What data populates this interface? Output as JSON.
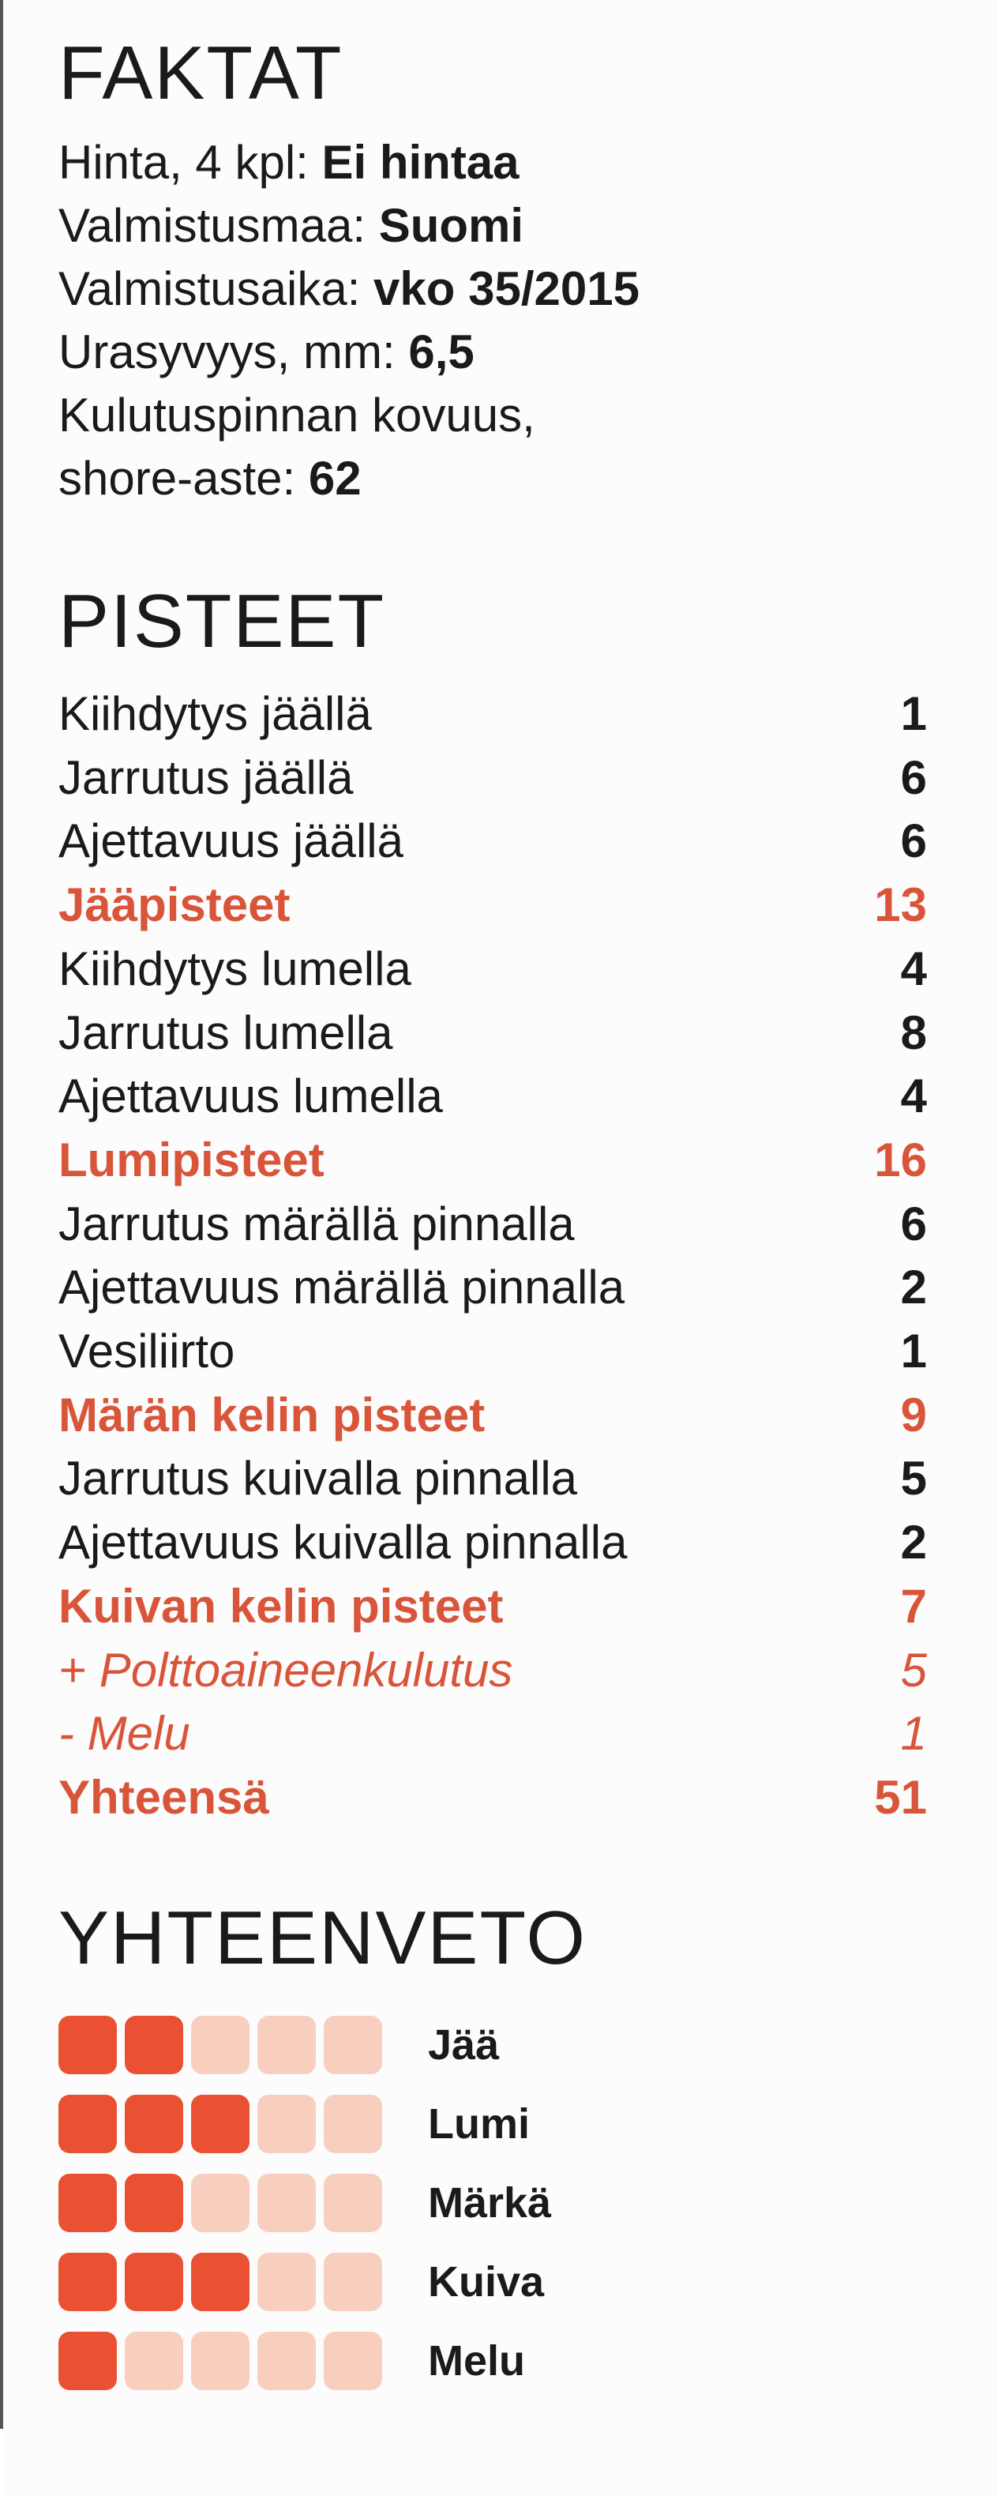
{
  "facts": {
    "heading": "FAKTAT",
    "lines": [
      {
        "label": "Hinta, 4 kpl:",
        "value": "Ei hintaa"
      },
      {
        "label": "Valmistusmaa:",
        "value": "Suomi"
      },
      {
        "label": "Valmistusaika:",
        "value": "vko 35/2015"
      },
      {
        "label": "Urasyvyys, mm:",
        "value": "6,5"
      },
      {
        "label": "Kulutuspinnan kovuus,",
        "value": ""
      },
      {
        "label": "shore-aste:",
        "value": "62"
      }
    ]
  },
  "scores": {
    "heading": "PISTEET",
    "rows": [
      {
        "label": "Kiihdytys jäällä",
        "value": "1",
        "kind": "item"
      },
      {
        "label": "Jarrutus jäällä",
        "value": "6",
        "kind": "item"
      },
      {
        "label": "Ajettavuus jäällä",
        "value": "6",
        "kind": "item"
      },
      {
        "label": "Jääpisteet",
        "value": "13",
        "kind": "subtotal"
      },
      {
        "label": "Kiihdytys lumella",
        "value": "4",
        "kind": "item"
      },
      {
        "label": "Jarrutus lumella",
        "value": "8",
        "kind": "item"
      },
      {
        "label": "Ajettavuus lumella",
        "value": "4",
        "kind": "item"
      },
      {
        "label": "Lumipisteet",
        "value": "16",
        "kind": "subtotal"
      },
      {
        "label": "Jarrutus märällä pinnalla",
        "value": "6",
        "kind": "item"
      },
      {
        "label": "Ajettavuus märällä pinnalla",
        "value": "2",
        "kind": "item"
      },
      {
        "label": "Vesiliirto",
        "value": "1",
        "kind": "item"
      },
      {
        "label": "Märän kelin pisteet",
        "value": "9",
        "kind": "subtotal"
      },
      {
        "label": "Jarrutus kuivalla pinnalla",
        "value": "5",
        "kind": "item"
      },
      {
        "label": "Ajettavuus kuivalla pinnalla",
        "value": "2",
        "kind": "item"
      },
      {
        "label": "Kuivan kelin pisteet",
        "value": "7",
        "kind": "subtotal"
      },
      {
        "label": "+ Polttoaineenkulutus",
        "value": "5",
        "kind": "modifier"
      },
      {
        "label": "- Melu",
        "value": "1",
        "kind": "modifier"
      },
      {
        "label": "Yhteensä",
        "value": "51",
        "kind": "total"
      }
    ]
  },
  "summary": {
    "heading": "YHTEENVETO",
    "max_rating": 5,
    "colors": {
      "filled": "#ea5132",
      "empty": "#f8cfbf",
      "accent": "#d9553a"
    },
    "rows": [
      {
        "label": "Jää",
        "rating": 2
      },
      {
        "label": "Lumi",
        "rating": 3
      },
      {
        "label": "Märkä",
        "rating": 2
      },
      {
        "label": "Kuiva",
        "rating": 3
      },
      {
        "label": "Melu",
        "rating": 1
      }
    ]
  }
}
